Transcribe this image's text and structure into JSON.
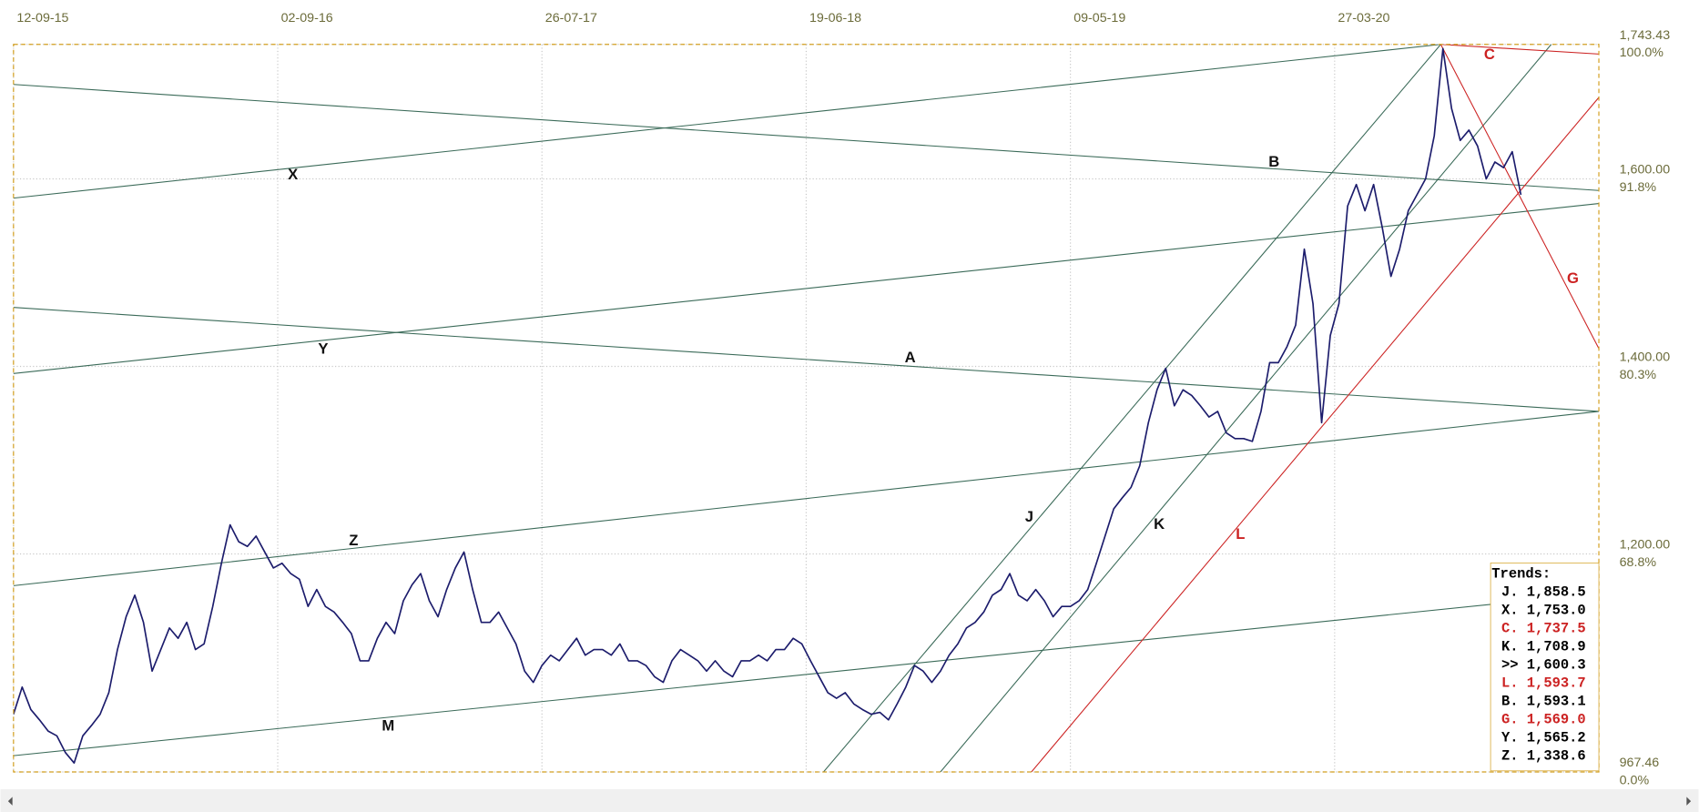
{
  "chart_data": {
    "type": "line",
    "color": "#1c1c6c",
    "xlim": [
      0,
      183
    ],
    "ylim": [
      967.46,
      1743.43
    ],
    "xticks": [
      {
        "value": 0,
        "label": "12-09-15"
      },
      {
        "value": 30.5,
        "label": "02-09-16"
      },
      {
        "value": 61,
        "label": "26-07-17"
      },
      {
        "value": 91.5,
        "label": "19-06-18"
      },
      {
        "value": 122,
        "label": "09-05-19"
      },
      {
        "value": 152.5,
        "label": "27-03-20"
      }
    ],
    "yticks": [
      {
        "value": 1743.43,
        "label": "1,743.43"
      },
      {
        "value": 1600,
        "label": "1,600.00"
      },
      {
        "value": 1400,
        "label": "1,400.00"
      },
      {
        "value": 1200,
        "label": "1,200.00"
      },
      967.46
    ],
    "y2ticks": [
      {
        "value": 100.0,
        "label": "100.0%"
      },
      {
        "value": 91.8,
        "label": "91.8%"
      },
      {
        "value": 80.3,
        "label": "80.3%"
      },
      {
        "value": 68.8,
        "label": "68.8%"
      },
      {
        "value": 0.0,
        "label": "0.0%"
      }
    ],
    "grid": true,
    "values": [
      1029,
      1058,
      1034,
      1023,
      1011,
      1006,
      988,
      977,
      1006,
      1017,
      1029,
      1052,
      1098,
      1133,
      1156,
      1127,
      1075,
      1098,
      1121,
      1110,
      1127,
      1098,
      1104,
      1144,
      1190,
      1231,
      1213,
      1208,
      1219,
      1202,
      1185,
      1190,
      1179,
      1173,
      1144,
      1162,
      1144,
      1138,
      1127,
      1115,
      1086,
      1086,
      1110,
      1127,
      1115,
      1150,
      1167,
      1179,
      1150,
      1133,
      1162,
      1185,
      1202,
      1162,
      1127,
      1127,
      1138,
      1121,
      1104,
      1075,
      1063,
      1081,
      1092,
      1086,
      1098,
      1110,
      1092,
      1098,
      1098,
      1092,
      1104,
      1086,
      1086,
      1081,
      1069,
      1063,
      1086,
      1098,
      1092,
      1086,
      1075,
      1086,
      1075,
      1069,
      1086,
      1086,
      1092,
      1086,
      1098,
      1098,
      1110,
      1104,
      1086,
      1069,
      1052,
      1046,
      1052,
      1040,
      1034,
      1029,
      1031,
      1023,
      1040,
      1058,
      1081,
      1075,
      1063,
      1075,
      1092,
      1104,
      1121,
      1127,
      1138,
      1156,
      1162,
      1179,
      1156,
      1150,
      1162,
      1150,
      1133,
      1144,
      1144,
      1150,
      1162,
      1190,
      1219,
      1248,
      1260,
      1271,
      1294,
      1340,
      1375,
      1398,
      1358,
      1375,
      1369,
      1358,
      1346,
      1352,
      1329,
      1323,
      1323,
      1320,
      1352,
      1404,
      1404,
      1421,
      1444,
      1525,
      1467,
      1340,
      1433,
      1467,
      1571,
      1594,
      1566,
      1594,
      1548,
      1496,
      1525,
      1566,
      1583,
      1600,
      1646,
      1739,
      1675,
      1641,
      1652,
      1635,
      1600,
      1618,
      1612,
      1629,
      1583
    ],
    "trend_lines": [
      {
        "name": "X",
        "color": "#3a6a58",
        "points": [
          [
            0,
            1579.5
          ],
          [
            164.75,
            1743.43
          ]
        ]
      },
      {
        "name": "B",
        "color": "#3a6a58",
        "points": [
          [
            0,
            1700.7
          ],
          [
            183,
            1587.6
          ]
        ]
      },
      {
        "name": "Y",
        "color": "#3a6a58",
        "points": [
          [
            0,
            1392.4
          ],
          [
            183,
            1573.7
          ]
        ]
      },
      {
        "name": "A",
        "color": "#3a6a58",
        "points": [
          [
            0,
            1462.9
          ],
          [
            183,
            1352.0
          ]
        ]
      },
      {
        "name": "Z",
        "color": "#3a6a58",
        "points": [
          [
            0,
            1166.1
          ],
          [
            183,
            1352.0
          ]
        ]
      },
      {
        "name": "M",
        "color": "#3a6a58",
        "points": [
          [
            0,
            984.8
          ],
          [
            183,
            1158.0
          ]
        ]
      },
      {
        "name": "J",
        "color": "#3a6a58",
        "points": [
          [
            93.5,
            967.46
          ],
          [
            164.75,
            1743.43
          ]
        ]
      },
      {
        "name": "K",
        "color": "#3a6a58",
        "points": [
          [
            107,
            967.46
          ],
          [
            177.5,
            1743.43
          ]
        ]
      },
      {
        "name": "L",
        "color": "#cc2222",
        "points": [
          [
            117.5,
            967.46
          ],
          [
            183,
            1686.9
          ]
        ]
      },
      {
        "name": "C",
        "color": "#cc2222",
        "points": [
          [
            164.75,
            1743.43
          ],
          [
            183,
            1733.1
          ]
        ]
      },
      {
        "name": "G",
        "color": "#cc2222",
        "points": [
          [
            164.75,
            1743.43
          ],
          [
            183,
            1419.0
          ]
        ]
      }
    ],
    "trends_legend": {
      "title": "Trends:",
      "items": [
        {
          "text": "J. 1,858.5",
          "color": "#000000"
        },
        {
          "text": "X. 1,753.0",
          "color": "#000000"
        },
        {
          "text": "C. 1,737.5",
          "color": "#cc2222"
        },
        {
          "text": "K. 1,708.9",
          "color": "#000000"
        },
        {
          "text": ">> 1,600.3",
          "color": "#000000"
        },
        {
          "text": "L. 1,593.7",
          "color": "#cc2222"
        },
        {
          "text": "B. 1,593.1",
          "color": "#000000"
        },
        {
          "text": "G. 1,569.0",
          "color": "#cc2222"
        },
        {
          "text": "Y. 1,565.2",
          "color": "#000000"
        },
        {
          "text": "Z. 1,338.6",
          "color": "#000000"
        }
      ]
    }
  }
}
